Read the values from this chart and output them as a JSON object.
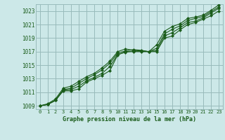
{
  "bg_color": "#cce8e8",
  "grid_color": "#99bbbb",
  "line_color": "#1a5c1a",
  "marker_color": "#1a5c1a",
  "xlabel": "Graphe pression niveau de la mer (hPa)",
  "xlim": [
    -0.5,
    23.5
  ],
  "ylim": [
    1008.5,
    1024.0
  ],
  "yticks": [
    1009,
    1011,
    1013,
    1015,
    1017,
    1019,
    1021,
    1023
  ],
  "xticks": [
    0,
    1,
    2,
    3,
    4,
    5,
    6,
    7,
    8,
    9,
    10,
    11,
    12,
    13,
    14,
    15,
    16,
    17,
    18,
    19,
    20,
    21,
    22,
    23
  ],
  "series": [
    [
      1009.0,
      1009.2,
      1009.8,
      1011.2,
      1011.2,
      1011.5,
      1012.5,
      1013.0,
      1013.5,
      1014.2,
      1016.5,
      1017.0,
      1017.0,
      1017.0,
      1017.0,
      1017.0,
      1019.0,
      1019.3,
      1020.2,
      1021.0,
      1021.3,
      1021.8,
      1022.3,
      1023.0
    ],
    [
      1009.0,
      1009.2,
      1009.8,
      1011.3,
      1011.4,
      1011.9,
      1012.7,
      1013.2,
      1013.8,
      1014.8,
      1016.6,
      1016.9,
      1017.1,
      1017.1,
      1017.0,
      1017.2,
      1019.3,
      1019.8,
      1020.5,
      1021.3,
      1021.5,
      1022.0,
      1022.7,
      1023.4
    ],
    [
      1009.0,
      1009.2,
      1009.8,
      1011.4,
      1011.6,
      1012.3,
      1013.0,
      1013.6,
      1014.3,
      1015.3,
      1016.8,
      1017.1,
      1017.3,
      1017.2,
      1017.0,
      1017.5,
      1019.6,
      1020.3,
      1020.8,
      1021.6,
      1021.9,
      1022.2,
      1022.9,
      1023.6
    ],
    [
      1009.0,
      1009.3,
      1010.0,
      1011.6,
      1011.9,
      1012.6,
      1013.3,
      1013.8,
      1014.6,
      1015.6,
      1017.0,
      1017.4,
      1017.2,
      1017.1,
      1017.0,
      1018.0,
      1020.0,
      1020.7,
      1021.1,
      1021.9,
      1022.1,
      1022.4,
      1023.1,
      1023.9
    ]
  ],
  "tick_fontsize": 5.5,
  "xlabel_fontsize": 6.0
}
